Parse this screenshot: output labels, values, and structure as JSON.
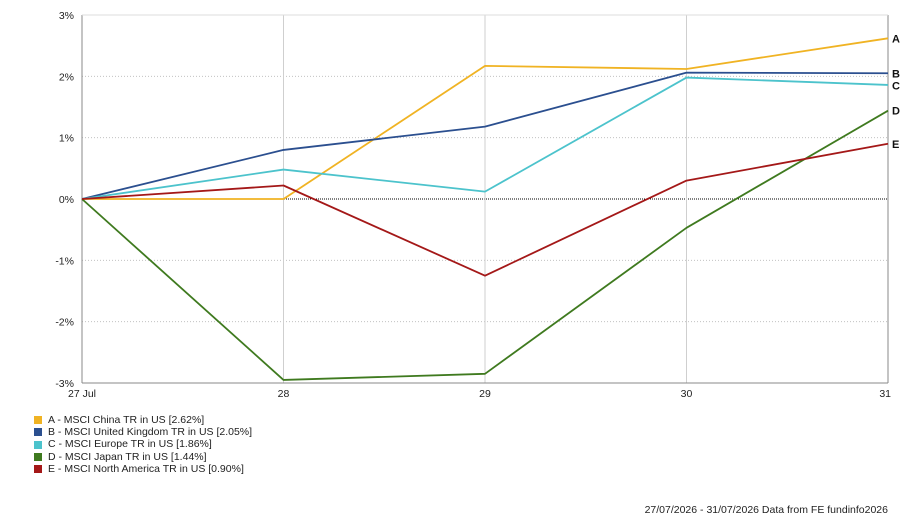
{
  "chart_data": {
    "type": "line",
    "x": [
      "27 Jul",
      "28",
      "29",
      "30",
      "31"
    ],
    "ylim": [
      -3,
      3
    ],
    "yticks": [
      3,
      2,
      1,
      0,
      -1,
      -2,
      -3
    ],
    "ytick_labels": [
      "3%",
      "2%",
      "1%",
      "0%",
      "-1%",
      "-2%",
      "-3%"
    ],
    "grid": true,
    "legend_position": "bottom-left",
    "series": [
      {
        "key": "A",
        "name": "A - MSCI China TR in US [2.62%]",
        "color": "#f0b323",
        "values": [
          0,
          0,
          2.17,
          2.12,
          2.62
        ]
      },
      {
        "key": "B",
        "name": "B - MSCI United Kingdom TR in US [2.05%]",
        "color": "#2b4f8f",
        "values": [
          0,
          0.8,
          1.18,
          2.06,
          2.05
        ]
      },
      {
        "key": "C",
        "name": "C - MSCI Europe TR in US [1.86%]",
        "color": "#4cc3cc",
        "values": [
          0,
          0.48,
          0.12,
          1.98,
          1.86
        ]
      },
      {
        "key": "D",
        "name": "D - MSCI Japan TR in US [1.44%]",
        "color": "#3f7a1f",
        "values": [
          0,
          -2.95,
          -2.85,
          -0.47,
          1.44
        ]
      },
      {
        "key": "E",
        "name": "E - MSCI North America TR in US [0.90%]",
        "color": "#a41818",
        "values": [
          0,
          0.22,
          -1.25,
          0.3,
          0.9
        ]
      }
    ]
  },
  "footer": "27/07/2026 - 31/07/2026 Data from FE fundinfo2026"
}
